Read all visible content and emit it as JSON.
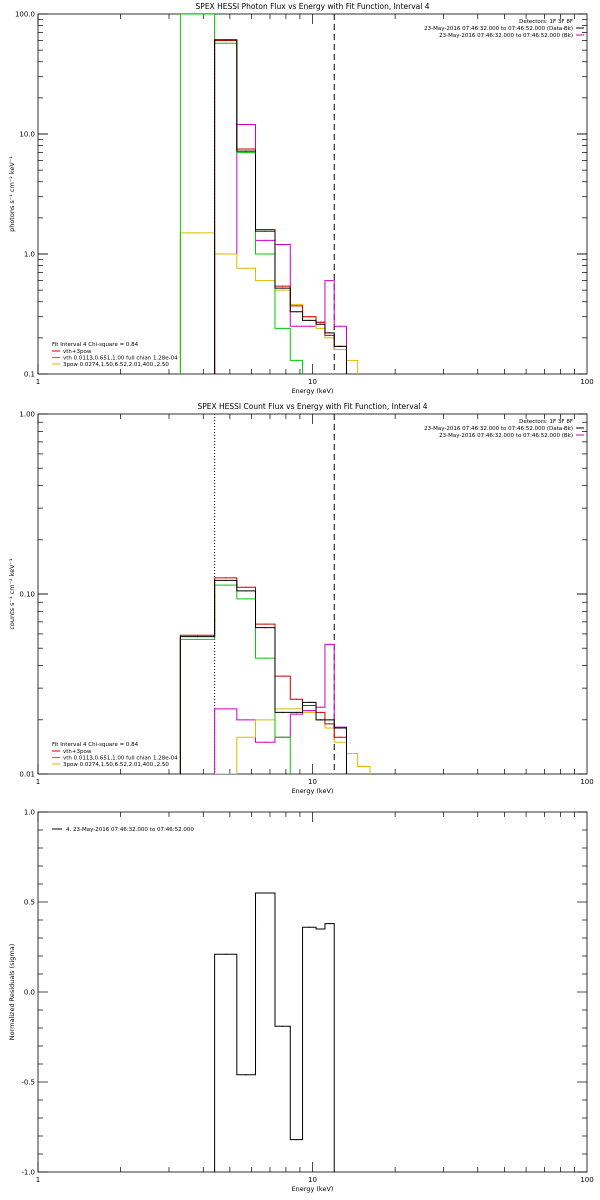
{
  "colors": {
    "data": "#000000",
    "bk": "#cc00cc",
    "total": "#cc0000",
    "vth": "#00cc00",
    "pow": "#ddbb00"
  },
  "chart_data": [
    {
      "type": "line",
      "title": "SPEX HESSI Photon Flux vs Energy with Fit Function, Interval 4",
      "xlabel": "Energy (keV)",
      "ylabel": "photons s⁻¹ cm⁻² keV⁻¹",
      "xscale": "log",
      "yscale": "log",
      "xlim": [
        1,
        100
      ],
      "ylim": [
        0.1,
        100
      ],
      "xticklabels": [
        {
          "v": 1,
          "t": "1"
        },
        {
          "v": 10,
          "t": "10"
        },
        {
          "v": 100,
          "t": "100"
        }
      ],
      "yticklabels": [
        {
          "v": 0.1,
          "t": "0.1"
        },
        {
          "v": 1,
          "t": "1.0"
        },
        {
          "v": 10,
          "t": "10.0"
        },
        {
          "v": 100,
          "t": "100.0"
        }
      ],
      "detectors": "Detectors: 1F 3F 8F",
      "legend_top": [
        {
          "text": "23-May-2016 07:46:32.000 to 07:46:52.000 (Data-Bk)",
          "color": "#000000"
        },
        {
          "text": "23-May-2016 07:46:32.000 to 07:46:52.000 (Bk)",
          "color": "#cc00cc"
        }
      ],
      "fit_header": "Fit Interval 4   Chi-square = 0.84",
      "legend_bottom": [
        {
          "text": "vth+3pow",
          "color": "#cc0000"
        },
        {
          "text": "vth 0.0113,0.651,1.00  full chian 1.28e-04",
          "color": "#00cc00"
        },
        {
          "text": "3pow 0.0274,1.50,6.52,2.01,400.,2.50",
          "color": "#ddbb00"
        }
      ],
      "vlines": [
        {
          "x": 4.4,
          "style": "dotted",
          "color": "#cc00cc"
        },
        {
          "x": 12.0,
          "style": "dashed",
          "color": "#000000"
        }
      ],
      "edges": [
        3.3,
        4.4,
        5.3,
        6.2,
        7.3,
        8.3,
        9.2,
        10.3,
        11.1,
        12.0,
        13.3,
        14.6
      ],
      "series": [
        {
          "key": "bk",
          "color": "#cc00cc",
          "values": [
            null,
            1.0,
            12.0,
            1.3,
            1.2,
            0.25,
            0.25,
            0.27,
            0.6,
            0.25,
            null
          ]
        },
        {
          "key": "pow",
          "color": "#ddbb00",
          "values": [
            1.5,
            1.0,
            0.76,
            0.6,
            0.5,
            0.38,
            0.3,
            0.24,
            0.2,
            0.16,
            0.13
          ]
        },
        {
          "key": "vth",
          "color": "#00cc00",
          "values": [
            100,
            57,
            7.0,
            1.0,
            0.24,
            0.13,
            null,
            null,
            null,
            null,
            null
          ]
        },
        {
          "key": "total",
          "color": "#cc0000",
          "values": [
            null,
            60,
            7.5,
            1.6,
            0.54,
            0.37,
            0.3,
            0.27,
            0.21,
            0.17,
            null
          ]
        },
        {
          "key": "data",
          "color": "#000000",
          "values": [
            null,
            61,
            7.2,
            1.55,
            0.52,
            0.33,
            0.28,
            0.26,
            0.22,
            0.17,
            null
          ]
        }
      ]
    },
    {
      "type": "line",
      "title": "SPEX HESSI Count Flux vs Energy with Fit Function, Interval 4",
      "xlabel": "Energy (keV)",
      "ylabel": "counts s⁻¹ cm⁻² keV⁻¹",
      "xscale": "log",
      "yscale": "log",
      "xlim": [
        1,
        100
      ],
      "ylim": [
        0.01,
        1.0
      ],
      "xticklabels": [
        {
          "v": 1,
          "t": "1"
        },
        {
          "v": 10,
          "t": "10"
        },
        {
          "v": 100,
          "t": "100"
        }
      ],
      "yticklabels": [
        {
          "v": 0.01,
          "t": "0.01"
        },
        {
          "v": 0.1,
          "t": "0.10"
        },
        {
          "v": 1,
          "t": "1.00"
        }
      ],
      "detectors": "Detectors: 1F 3F 8F",
      "legend_top": [
        {
          "text": "23-May-2016 07:46:32.000 to 07:46:52.000 (Data-Bk)",
          "color": "#000000"
        },
        {
          "text": "23-May-2016 07:46:32.000 to 07:46:52.000 (Bk)",
          "color": "#cc00cc"
        }
      ],
      "fit_header": "Fit Interval 4   Chi-square = 0.84",
      "legend_bottom": [
        {
          "text": "vth+3pow",
          "color": "#cc0000"
        },
        {
          "text": "vth 0.0113,0.651,1.00  full chian 1.28e-04",
          "color": "#00cc00"
        },
        {
          "text": "3pow 0.0274,1.50,6.52,2.01,400.,2.50",
          "color": "#ddbb00"
        }
      ],
      "vlines": [
        {
          "x": 4.4,
          "style": "dotted",
          "color": "#000000"
        },
        {
          "x": 12.0,
          "style": "dashed",
          "color": "#000000"
        }
      ],
      "edges": [
        3.3,
        4.4,
        5.3,
        6.2,
        7.3,
        8.3,
        9.2,
        10.3,
        11.1,
        12.0,
        13.3,
        14.6,
        16.2
      ],
      "series": [
        {
          "key": "bk",
          "color": "#cc00cc",
          "values": [
            null,
            0.023,
            0.02,
            0.015,
            0.016,
            0.0215,
            0.0225,
            0.0235,
            0.0525,
            0.0182,
            null,
            null
          ]
        },
        {
          "key": "pow",
          "color": "#ddbb00",
          "values": [
            null,
            0.01,
            0.016,
            0.02,
            0.023,
            0.023,
            0.022,
            0.02,
            0.018,
            0.015,
            0.013,
            0.011
          ]
        },
        {
          "key": "vth",
          "color": "#00cc00",
          "values": [
            0.056,
            0.112,
            0.094,
            0.044,
            0.016,
            null,
            null,
            null,
            null,
            null,
            null,
            null
          ]
        },
        {
          "key": "total",
          "color": "#cc0000",
          "values": [
            0.059,
            0.123,
            0.109,
            0.068,
            0.035,
            0.026,
            0.024,
            0.022,
            0.019,
            0.016,
            null,
            null
          ]
        },
        {
          "key": "data",
          "color": "#000000",
          "values": [
            0.058,
            0.119,
            0.104,
            0.065,
            0.022,
            0.022,
            0.025,
            0.02,
            0.02,
            0.018,
            null,
            null
          ]
        }
      ]
    },
    {
      "type": "line",
      "title": "",
      "xlabel": "Energy (keV)",
      "ylabel": "Normalized Residuals (sigma)",
      "xscale": "log",
      "yscale": "linear",
      "xlim": [
        1,
        100
      ],
      "ylim": [
        -1.0,
        1.0
      ],
      "xticklabels": [
        {
          "v": 1,
          "t": "1"
        },
        {
          "v": 10,
          "t": "10"
        },
        {
          "v": 100,
          "t": "100"
        }
      ],
      "yticklabels": [
        {
          "v": -1,
          "t": "-1.0"
        },
        {
          "v": -0.5,
          "t": "-0.5"
        },
        {
          "v": 0,
          "t": "0.0"
        },
        {
          "v": 0.5,
          "t": "0.5"
        },
        {
          "v": 1,
          "t": "1.0"
        }
      ],
      "legend_residual": "4. 23-May-2016 07:46:32.000 to 07:46:52.000",
      "edges": [
        4.4,
        5.3,
        6.2,
        7.3,
        8.3,
        9.2,
        10.3,
        11.1,
        12.0
      ],
      "series": [
        {
          "key": "residuals",
          "color": "#000000",
          "values": [
            0.21,
            -0.46,
            0.55,
            -0.19,
            -0.82,
            0.36,
            0.35,
            0.38
          ]
        }
      ]
    }
  ]
}
